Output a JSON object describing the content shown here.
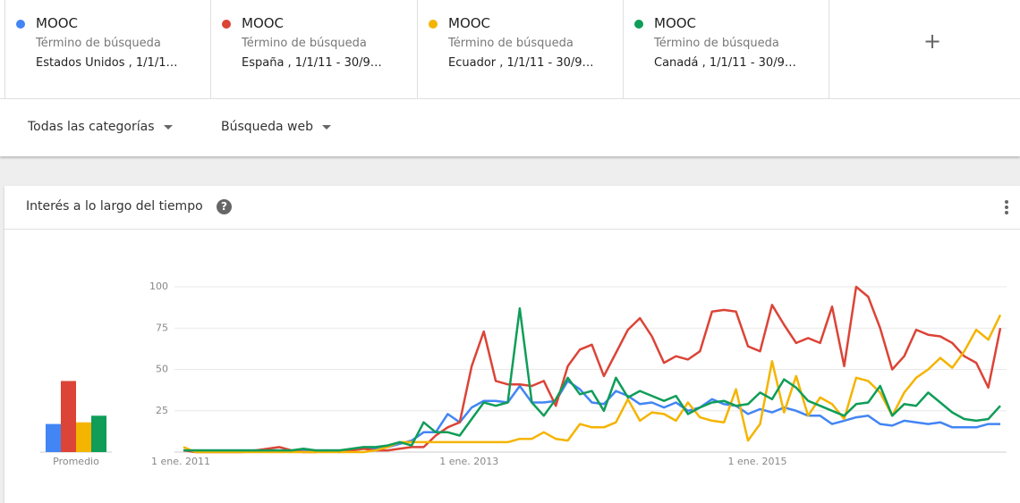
{
  "terms": [
    {
      "name": "MOOC",
      "type": "Término de búsqueda",
      "detail": "Estados Unidos , 1/1/1…"
    },
    {
      "name": "MOOC",
      "type": "Término de búsqueda",
      "detail": "España , 1/1/11 - 30/9…"
    },
    {
      "name": "MOOC",
      "type": "Término de búsqueda",
      "detail": "Ecuador , 1/1/11 - 30/9…"
    },
    {
      "name": "MOOC",
      "type": "Término de búsqueda",
      "detail": "Canadá , 1/1/11 - 30/9…"
    }
  ],
  "filters": [
    "Todas las categorías",
    "Búsqueda web"
  ],
  "card_title": "Interés a lo largo del tiempo",
  "chart_data": [
    {
      "type": "line",
      "categories": [
        "1 ene. 2011",
        null,
        null,
        null,
        null,
        null,
        null,
        null,
        null,
        null,
        null,
        null,
        null,
        null,
        null,
        null,
        null,
        null,
        null,
        null,
        null,
        null,
        null,
        null,
        "1 ene. 2013",
        null,
        null,
        null,
        null,
        null,
        null,
        null,
        null,
        null,
        null,
        null,
        null,
        null,
        null,
        null,
        null,
        null,
        null,
        null,
        null,
        null,
        null,
        null,
        "1 ene. 2015",
        null,
        null,
        null,
        null,
        null,
        null,
        null,
        null,
        null,
        null,
        null,
        null,
        null,
        null,
        null,
        null,
        null,
        null,
        null,
        null
      ],
      "ylim": [
        0,
        100
      ],
      "yticks": [
        25,
        50,
        75,
        100
      ],
      "grid": true,
      "series": [
        {
          "color": "#4285f4",
          "values": [
            1,
            1,
            1,
            1,
            1,
            1,
            1,
            1,
            1,
            1,
            1,
            1,
            1,
            1,
            1,
            2,
            2,
            3,
            5,
            7,
            12,
            12,
            23,
            18,
            27,
            31,
            31,
            30,
            40,
            30,
            30,
            31,
            43,
            38,
            30,
            29,
            37,
            34,
            29,
            30,
            27,
            30,
            25,
            27,
            32,
            29,
            28,
            23,
            26,
            24,
            27,
            25,
            22,
            22,
            17,
            19,
            21,
            22,
            17,
            16,
            19,
            18,
            17,
            18,
            15,
            15,
            15,
            17,
            17
          ]
        },
        {
          "color": "#db4437",
          "values": [
            1,
            0,
            0,
            0,
            0,
            0,
            1,
            2,
            3,
            1,
            0,
            0,
            1,
            0,
            1,
            2,
            1,
            1,
            2,
            3,
            3,
            10,
            15,
            18,
            52,
            73,
            43,
            41,
            41,
            40,
            43,
            28,
            52,
            62,
            65,
            46,
            60,
            74,
            81,
            70,
            54,
            58,
            56,
            61,
            85,
            86,
            85,
            64,
            61,
            89,
            77,
            66,
            69,
            66,
            88,
            52,
            100,
            94,
            75,
            50,
            58,
            74,
            71,
            70,
            66,
            58,
            54,
            39,
            75
          ]
        },
        {
          "color": "#f4b400",
          "values": [
            3,
            0,
            0,
            0,
            0,
            0,
            0,
            0,
            0,
            0,
            0,
            0,
            0,
            0,
            0,
            0,
            1,
            3,
            6,
            6,
            6,
            6,
            6,
            6,
            6,
            6,
            6,
            6,
            8,
            8,
            12,
            8,
            7,
            17,
            15,
            15,
            18,
            32,
            19,
            24,
            23,
            19,
            30,
            21,
            19,
            18,
            38,
            7,
            17,
            55,
            24,
            46,
            22,
            33,
            29,
            20,
            45,
            43,
            36,
            22,
            36,
            45,
            50,
            57,
            51,
            61,
            74,
            68,
            83
          ]
        },
        {
          "color": "#0f9d58",
          "values": [
            1,
            1,
            1,
            1,
            1,
            1,
            1,
            1,
            1,
            1,
            2,
            1,
            1,
            1,
            2,
            3,
            3,
            4,
            6,
            4,
            18,
            12,
            12,
            10,
            20,
            30,
            28,
            30,
            87,
            30,
            22,
            32,
            45,
            35,
            37,
            25,
            45,
            33,
            37,
            34,
            31,
            34,
            23,
            27,
            30,
            31,
            28,
            29,
            36,
            32,
            44,
            39,
            31,
            28,
            25,
            22,
            29,
            30,
            40,
            22,
            29,
            28,
            36,
            30,
            24,
            20,
            19,
            20,
            28
          ]
        }
      ]
    },
    {
      "type": "bar",
      "xlabel": "Promedio",
      "ylim": [
        0,
        100
      ],
      "values": [
        17,
        43,
        18,
        22
      ],
      "colors": [
        "#4285f4",
        "#db4437",
        "#f4b400",
        "#0f9d58"
      ]
    }
  ]
}
